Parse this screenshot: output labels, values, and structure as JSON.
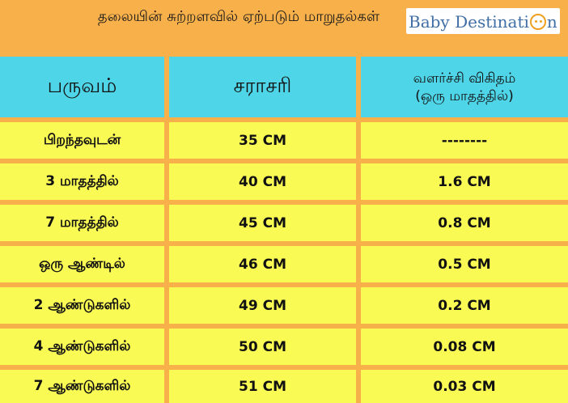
{
  "header": {
    "title": "தலையின் சுற்றளவில் ஏற்படும் மாறுதல்கள்",
    "logo_text_a": "Baby Destinati",
    "logo_text_b": "n"
  },
  "table": {
    "columns": [
      "பருவம்",
      "சராசரி",
      "வளர்ச்சி விகிதம்\n(ஒரு மாதத்தில்)"
    ],
    "rows": [
      [
        "பிறந்தவுடன்",
        "35 CM",
        "--------"
      ],
      [
        "3 மாதத்தில்",
        "40 CM",
        "1.6 CM"
      ],
      [
        "7 மாதத்தில்",
        "45 CM",
        "0.8 CM"
      ],
      [
        "ஒரு ஆண்டில்",
        "46 CM",
        "0.5 CM"
      ],
      [
        "2 ஆண்டுகளில்",
        "49 CM",
        "0.2 CM"
      ],
      [
        "4 ஆண்டுகளில்",
        "50 CM",
        "0.08 CM"
      ],
      [
        "7 ஆண்டுகளில்",
        "51 CM",
        "0.03 CM"
      ]
    ]
  },
  "colors": {
    "background": "#f8b04a",
    "header_row": "#4fd5e8",
    "body_row": "#fafa55",
    "logo_text": "#3f6fa6",
    "logo_accent": "#f0a020"
  }
}
